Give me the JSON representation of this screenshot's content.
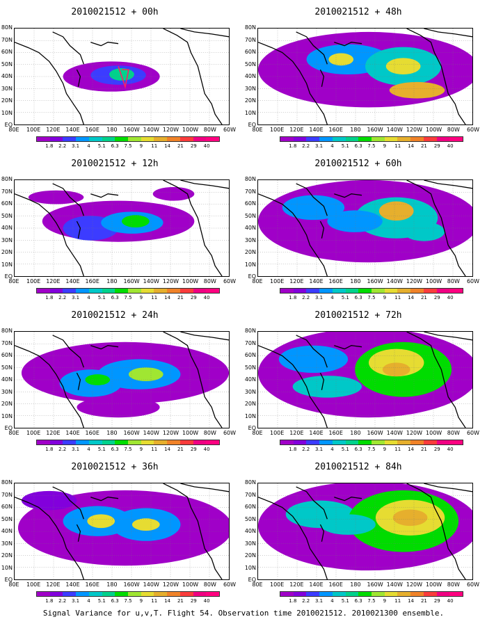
{
  "panels": [
    {
      "title": "2010021512 + 00h",
      "stage": 0
    },
    {
      "title": "2010021512 + 12h",
      "stage": 1
    },
    {
      "title": "2010021512 + 24h",
      "stage": 2
    },
    {
      "title": "2010021512 + 36h",
      "stage": 3
    },
    {
      "title": "2010021512 + 48h",
      "stage": 4
    },
    {
      "title": "2010021512 + 60h",
      "stage": 5
    },
    {
      "title": "2010021512 + 72h",
      "stage": 6
    },
    {
      "title": "2010021512 + 84h",
      "stage": 7
    }
  ],
  "lat_labels": [
    "80N",
    "70N",
    "60N",
    "50N",
    "40N",
    "30N",
    "20N",
    "10N",
    "EQ"
  ],
  "lon_labels": [
    "80E",
    "100E",
    "120E",
    "140E",
    "160E",
    "180",
    "160W",
    "140W",
    "120W",
    "100W",
    "80W",
    "60W"
  ],
  "colorbar": {
    "labels": [
      "1.8",
      "2.2",
      "3.1",
      "4",
      "5.1",
      "6.3",
      "7.5",
      "9",
      "11",
      "14",
      "21",
      "29",
      "40"
    ],
    "colors": [
      "#a000c8",
      "#8200dc",
      "#3c3cff",
      "#0096ff",
      "#00c8c8",
      "#00d28c",
      "#00dc00",
      "#a0e632",
      "#e6dc32",
      "#e6af2d",
      "#f08228",
      "#fa3c3c",
      "#f00082"
    ]
  },
  "footer": "Signal Variance for u,v,T. Flight 54. Observation time 2010021512. 2010021300 ensemble."
}
